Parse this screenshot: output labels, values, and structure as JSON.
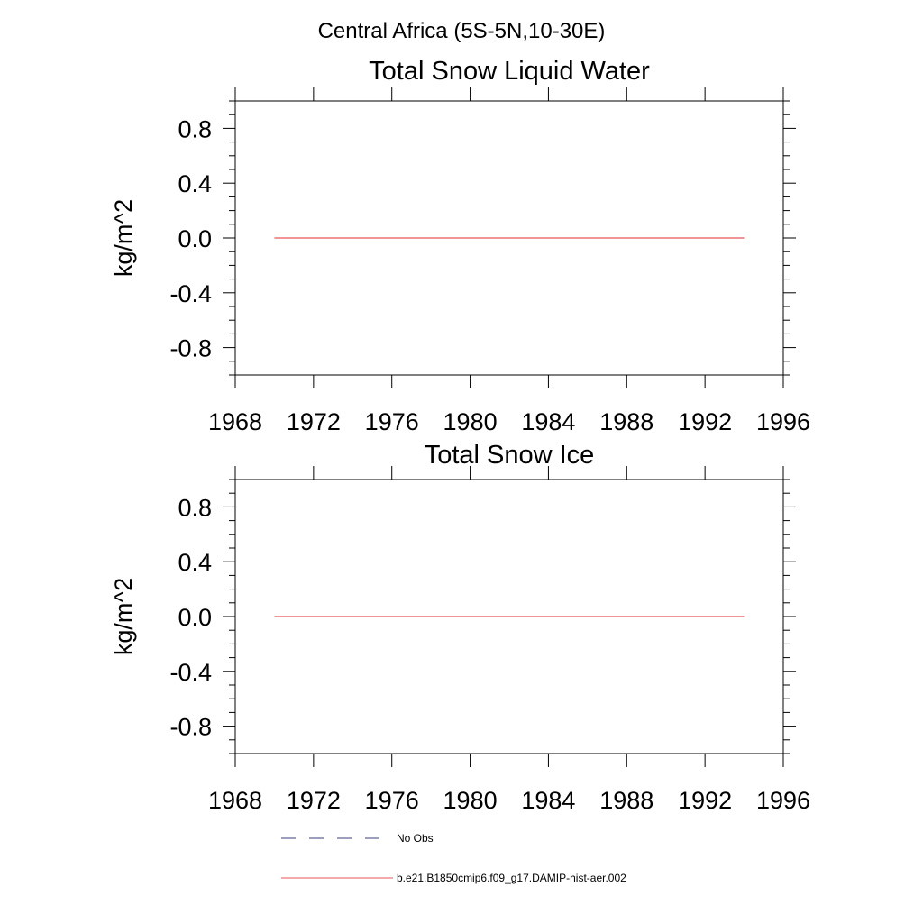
{
  "figure": {
    "suptitle": "Central Africa (5S-5N,10-30E)"
  },
  "chart_data": [
    {
      "type": "line",
      "title": "Total Snow Liquid Water",
      "xlabel": "",
      "ylabel": "kg/m^2",
      "xlim": [
        1968,
        1996
      ],
      "ylim": [
        -1.0,
        1.0
      ],
      "xticks": [
        1968,
        1972,
        1976,
        1980,
        1984,
        1988,
        1992,
        1996
      ],
      "yticks": [
        "0.8",
        "0.4",
        "0.0",
        "-0.4",
        "-0.8"
      ],
      "ytick_values": [
        0.8,
        0.4,
        0.0,
        -0.4,
        -0.8
      ],
      "grid": false,
      "series": [
        {
          "name": "b.e21.B1850cmip6.f09_g17.DAMIP-hist-aer.002",
          "color": "#e8555a",
          "x": [
            1970,
            1994
          ],
          "y": [
            0.0,
            0.0
          ]
        }
      ]
    },
    {
      "type": "line",
      "title": "Total Snow Ice",
      "xlabel": "",
      "ylabel": "kg/m^2",
      "xlim": [
        1968,
        1996
      ],
      "ylim": [
        -1.0,
        1.0
      ],
      "xticks": [
        1968,
        1972,
        1976,
        1980,
        1984,
        1988,
        1992,
        1996
      ],
      "yticks": [
        "0.8",
        "0.4",
        "0.0",
        "-0.4",
        "-0.8"
      ],
      "ytick_values": [
        0.8,
        0.4,
        0.0,
        -0.4,
        -0.8
      ],
      "grid": false,
      "series": [
        {
          "name": "b.e21.B1850cmip6.f09_g17.DAMIP-hist-aer.002",
          "color": "#e8555a",
          "x": [
            1970,
            1994
          ],
          "y": [
            0.0,
            0.0
          ]
        }
      ]
    }
  ],
  "legend": {
    "placement": "bottom",
    "items": [
      {
        "label": "No Obs",
        "style": "dashed",
        "color": "#3b3b7a"
      },
      {
        "label": "b.e21.B1850cmip6.f09_g17.DAMIP-hist-aer.002",
        "style": "solid",
        "color": "#e8555a"
      }
    ]
  }
}
